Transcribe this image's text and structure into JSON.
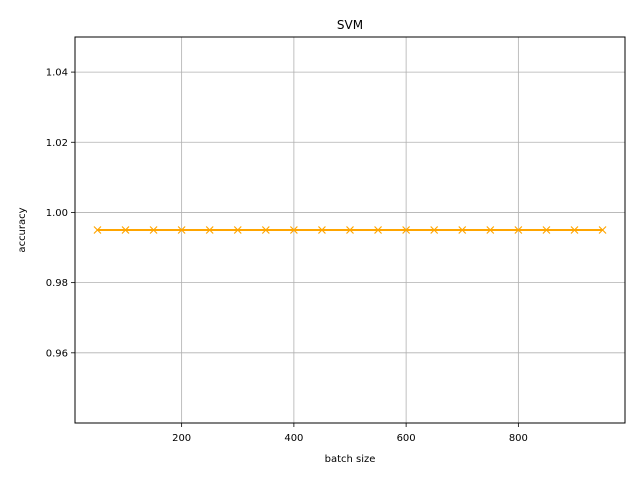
{
  "chart_data": {
    "type": "line",
    "title": "SVM",
    "xlabel": "batch size",
    "ylabel": "accuracy",
    "xlim": [
      10,
      990
    ],
    "ylim": [
      0.94,
      1.05
    ],
    "xticks": [
      200,
      400,
      600,
      800
    ],
    "xtick_labels": [
      "200",
      "400",
      "600",
      "800"
    ],
    "yticks": [
      0.96,
      0.98,
      1.0,
      1.02,
      1.04
    ],
    "ytick_labels": [
      "0.96",
      "0.98",
      "1.00",
      "1.02",
      "1.04"
    ],
    "grid": true,
    "series": [
      {
        "color": "#ffa500",
        "marker": "x",
        "x": [
          50,
          100,
          150,
          200,
          250,
          300,
          350,
          400,
          450,
          500,
          550,
          600,
          650,
          700,
          750,
          800,
          850,
          900,
          950
        ],
        "y": [
          0.995,
          0.995,
          0.995,
          0.995,
          0.995,
          0.995,
          0.995,
          0.995,
          0.995,
          0.995,
          0.995,
          0.995,
          0.995,
          0.995,
          0.995,
          0.995,
          0.995,
          0.995,
          0.995
        ]
      }
    ]
  }
}
